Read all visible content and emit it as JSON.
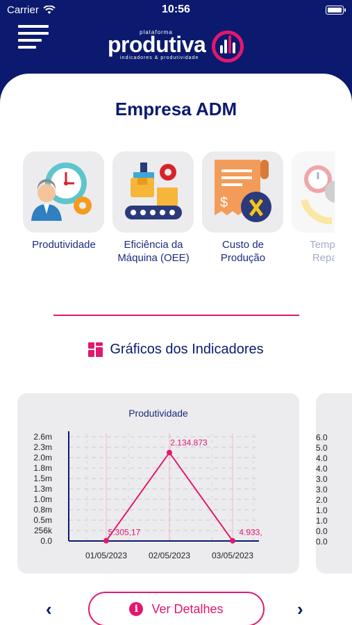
{
  "status_bar": {
    "carrier": "Carrier",
    "time": "10:56"
  },
  "header": {
    "logo_small": "plataforma",
    "logo_main": "produtiva",
    "logo_tagline": "indicadores & produtividade"
  },
  "page": {
    "title": "Empresa ADM"
  },
  "indicators": [
    {
      "label": "Produtividade",
      "icon": "productivity-clock-icon"
    },
    {
      "label": "Eficiência da Máquina (OEE)",
      "icon": "machine-efficiency-icon"
    },
    {
      "label": "Custo de Produção",
      "icon": "production-cost-icon"
    },
    {
      "label": "Tempo de Reparo (",
      "icon": "repair-time-icon"
    }
  ],
  "charts_section": {
    "title": "Gráficos dos Indicadores",
    "icon": "grid-icon"
  },
  "chart_data": {
    "type": "line",
    "title": "Produtividade",
    "categories": [
      "01/05/2023",
      "02/05/2023",
      "03/05/2023"
    ],
    "series": [
      {
        "values": [
          5305.17,
          2134873,
          4933
        ]
      }
    ],
    "data_labels": [
      "5.305,17",
      "2.134.873",
      "4.933,"
    ],
    "y_ticks": [
      "0.0",
      "256k",
      "0.5m",
      "0.8m",
      "1.0m",
      "1.3m",
      "1.5m",
      "1.8m",
      "2.0m",
      "2.3m",
      "2.6m"
    ],
    "ylim": [
      0,
      2600000
    ],
    "grid": true,
    "color": "#e3176f"
  },
  "next_chart_ticks": [
    "6.0",
    "5.0",
    "4.0",
    "4.0",
    "3.0",
    "3.0",
    "2.0",
    "1.0",
    "1.0",
    "0.0",
    "0.0"
  ],
  "actions": {
    "details_label": "Ver Detalhes",
    "prev_icon": "chevron-left-icon",
    "next_icon": "chevron-right-icon"
  },
  "colors": {
    "primary": "#0b1a6e",
    "accent": "#e3176f",
    "card": "#ececee"
  }
}
